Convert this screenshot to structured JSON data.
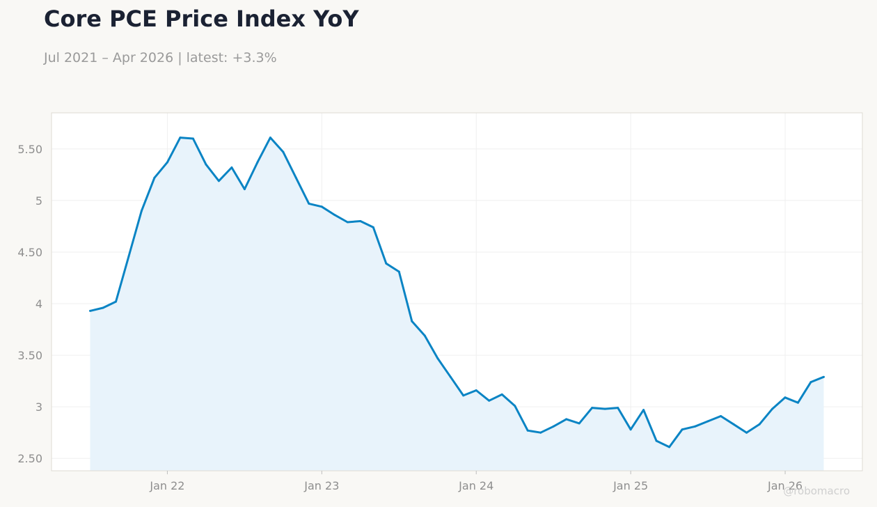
{
  "title": "Core PCE Price Index YoY",
  "subtitle": "Jul 2021 – Apr 2026 | latest: +3.3%",
  "watermark": "@robomacro",
  "colors": {
    "line": "#0a84c4",
    "area": "#e8f3fb",
    "grid": "#efefef",
    "plot_bg": "#ffffff",
    "plot_border": "#dedbd3",
    "page_bg": "#f9f8f5"
  },
  "chart_data": {
    "type": "area",
    "title": "Core PCE Price Index YoY",
    "xlabel": "",
    "ylabel": "",
    "ylim": [
      2.38,
      5.85
    ],
    "grid": true,
    "x_ticks": [
      {
        "date": "2022-01",
        "label": "Jan 22"
      },
      {
        "date": "2023-01",
        "label": "Jan 23"
      },
      {
        "date": "2024-01",
        "label": "Jan 24"
      },
      {
        "date": "2025-01",
        "label": "Jan 25"
      },
      {
        "date": "2026-01",
        "label": "Jan 26"
      }
    ],
    "y_ticks": [
      {
        "value": 2.5,
        "label": "2.50"
      },
      {
        "value": 3,
        "label": "3"
      },
      {
        "value": 3.5,
        "label": "3.50"
      },
      {
        "value": 4,
        "label": "4"
      },
      {
        "value": 4.5,
        "label": "4.50"
      },
      {
        "value": 5,
        "label": "5"
      },
      {
        "value": 5.5,
        "label": "5.50"
      }
    ],
    "series": [
      {
        "x": [
          "2021-07",
          "2021-08",
          "2021-09",
          "2021-10",
          "2021-11",
          "2021-12",
          "2022-01",
          "2022-02",
          "2022-03",
          "2022-04",
          "2022-05",
          "2022-06",
          "2022-07",
          "2022-08",
          "2022-09",
          "2022-10",
          "2022-11",
          "2022-12",
          "2023-01",
          "2023-02",
          "2023-03",
          "2023-04",
          "2023-05",
          "2023-06",
          "2023-07",
          "2023-08",
          "2023-09",
          "2023-10",
          "2023-11",
          "2023-12",
          "2024-01",
          "2024-02",
          "2024-03",
          "2024-04",
          "2024-05",
          "2024-06",
          "2024-07",
          "2024-08",
          "2024-09",
          "2024-10",
          "2024-11",
          "2024-12",
          "2025-01",
          "2025-02",
          "2025-03",
          "2025-04",
          "2025-05",
          "2025-06",
          "2025-07",
          "2025-08",
          "2025-09",
          "2025-10",
          "2025-11",
          "2025-12",
          "2026-01",
          "2026-02",
          "2026-03",
          "2026-04"
        ],
        "values": [
          3.93,
          3.96,
          4.02,
          4.46,
          4.9,
          5.22,
          5.37,
          5.61,
          5.6,
          5.35,
          5.19,
          5.32,
          5.11,
          5.37,
          5.61,
          5.47,
          5.22,
          4.97,
          4.94,
          4.86,
          4.79,
          4.8,
          4.74,
          4.39,
          4.31,
          3.83,
          3.69,
          3.47,
          3.29,
          3.11,
          3.16,
          3.06,
          3.12,
          3.01,
          2.77,
          2.75,
          2.81,
          2.88,
          2.84,
          2.99,
          2.98,
          2.99,
          2.78,
          2.97,
          2.67,
          2.61,
          2.78,
          2.81,
          2.86,
          2.91,
          2.83,
          2.75,
          2.83,
          2.98,
          3.09,
          3.04,
          3.24,
          3.29
        ]
      }
    ]
  }
}
